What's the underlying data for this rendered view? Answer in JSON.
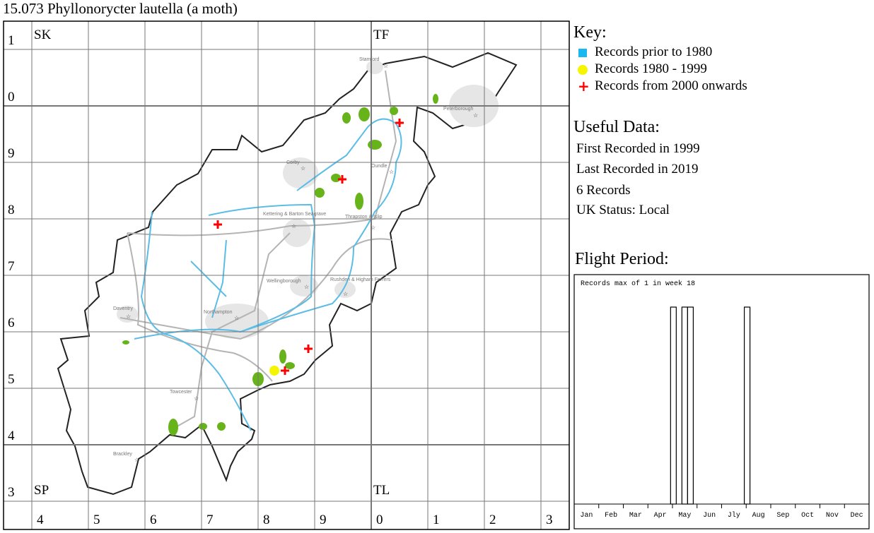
{
  "title": "15.073 Phyllonorycter lautella (a moth)",
  "grid": {
    "squares": [
      "SK",
      "TF",
      "SP",
      "TL"
    ],
    "row_labels": [
      "1",
      "0",
      "9",
      "8",
      "7",
      "6",
      "5",
      "4",
      "3"
    ],
    "col_labels": [
      "4",
      "5",
      "6",
      "7",
      "8",
      "9",
      "0",
      "1",
      "2",
      "3"
    ]
  },
  "towns": [
    "Stamford",
    "Peterborough",
    "Corby",
    "Oundle",
    "Kettering & Barton Seagrave",
    "Thrapston & Islip",
    "Wellingborough",
    "Rushden & Higham Ferrers",
    "Daventry",
    "Northampton",
    "Towcester",
    "Brackley"
  ],
  "colors": {
    "pre1980": "#1ab8f0",
    "r1980_1999": "#f5f500",
    "r2000": "#ff0000",
    "river": "#5bbde6",
    "woodland": "#66b31a",
    "urban": "#e6e6e6",
    "road": "#b4b4b4"
  },
  "records": [
    {
      "period": "2000 onwards",
      "symbol": "red-cross"
    },
    {
      "period": "2000 onwards",
      "symbol": "red-cross"
    },
    {
      "period": "2000 onwards",
      "symbol": "red-cross"
    },
    {
      "period": "2000 onwards",
      "symbol": "red-cross"
    },
    {
      "period": "2000 onwards",
      "symbol": "red-cross"
    },
    {
      "period": "1980 - 1999",
      "symbol": "yellow-dot"
    }
  ],
  "key": {
    "heading": "Key:",
    "items": [
      {
        "icon": "blue-square-icon",
        "label": "Records prior to 1980"
      },
      {
        "icon": "yellow-dot-icon",
        "label": "Records 1980 - 1999"
      },
      {
        "icon": "red-cross-icon",
        "label": "Records from 2000 onwards"
      }
    ]
  },
  "useful": {
    "heading": "Useful Data:",
    "first": "First Recorded in 1999",
    "last": "Last Recorded in 2019",
    "count": "6 Records",
    "status": "UK Status: Local"
  },
  "flight": {
    "heading": "Flight Period:"
  },
  "chart_data": {
    "type": "bar",
    "title": "Records max of 1 in week 18",
    "x_unit": "week of year",
    "months": [
      "Jan",
      "Feb",
      "Mar",
      "Apr",
      "May",
      "Jun",
      "Jly",
      "Aug",
      "Sep",
      "Oct",
      "Nov",
      "Dec"
    ],
    "weeks": [
      18,
      20,
      21,
      31
    ],
    "values": [
      1,
      1,
      1,
      1
    ],
    "ylim": [
      0,
      1
    ]
  }
}
